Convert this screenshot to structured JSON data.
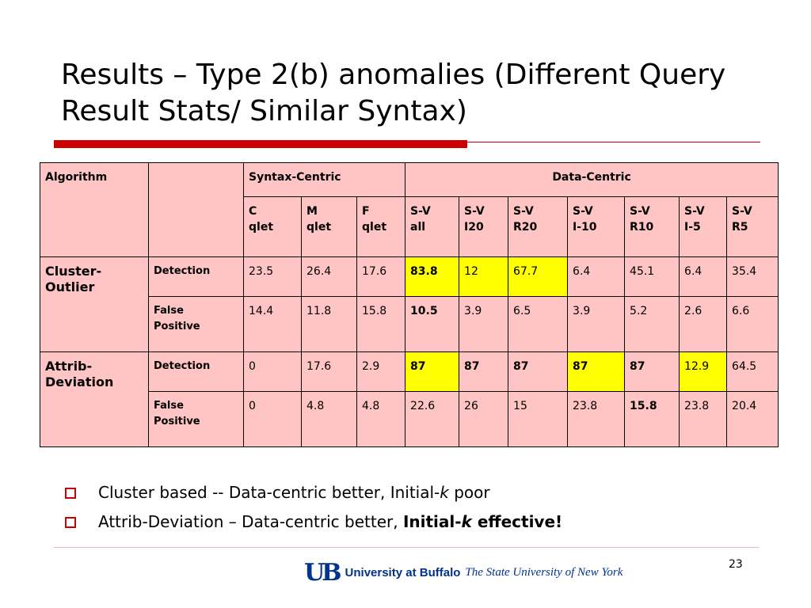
{
  "title": "Results – Type 2(b) anomalies (Different Query Result Stats/ Similar Syntax)",
  "table": {
    "header": {
      "algorithm": "Algorithm",
      "syntax_centric": "Syntax-Centric",
      "data_centric": "Data-Centric"
    },
    "subheaders": [
      [
        "C",
        "qlet"
      ],
      [
        "M",
        "qlet"
      ],
      [
        "F",
        "qlet"
      ],
      [
        "S-V",
        "all"
      ],
      [
        "S-V",
        "I20"
      ],
      [
        "S-V",
        "R20"
      ],
      [
        "S-V",
        "I-10"
      ],
      [
        "S-V",
        "R10"
      ],
      [
        "S-V",
        "I-5"
      ],
      [
        "S-V",
        "R5"
      ]
    ],
    "groups": [
      {
        "name_line1": "Cluster-",
        "name_line2": "Outlier",
        "rows": [
          {
            "metric_line1": "Detection",
            "metric_line2": "",
            "values": [
              "23.5",
              "26.4",
              "17.6",
              "83.8",
              "12",
              "67.7",
              "6.4",
              "45.1",
              "6.4",
              "35.4"
            ]
          },
          {
            "metric_line1": "False",
            "metric_line2": "Positive",
            "values": [
              "14.4",
              "11.8",
              "15.8",
              "10.5",
              "3.9",
              "6.5",
              "3.9",
              "5.2",
              "2.6",
              "6.6"
            ]
          }
        ]
      },
      {
        "name_line1": "Attrib-",
        "name_line2": "Deviation",
        "rows": [
          {
            "metric_line1": "Detection",
            "metric_line2": "",
            "values": [
              "0",
              "17.6",
              "2.9",
              "87",
              "87",
              "87",
              "87",
              "87",
              "12.9",
              "64.5"
            ]
          },
          {
            "metric_line1": "False",
            "metric_line2": "Positive",
            "values": [
              "0",
              "4.8",
              "4.8",
              "22.6",
              "26",
              "15",
              "23.8",
              "15.8",
              "23.8",
              "20.4"
            ]
          }
        ]
      }
    ]
  },
  "bullets": {
    "b1_text": "Cluster based --  Data-centric better, Initial-",
    "b1_k": "k",
    "b1_tail": " poor",
    "b2_text": "Attrib-Deviation – Data-centric better, ",
    "b2_bold": "Initial-",
    "b2_k": "k",
    "b2_bold_tail": " effective!"
  },
  "footer": {
    "logo_mark": "UB",
    "university": "University at Buffalo",
    "tagline": "The State University of New York",
    "page_number": "23"
  },
  "colors": {
    "accent_red": "#cc0000",
    "cell_pink": "#ffc4c4",
    "highlight_yellow": "#ffff00",
    "ub_blue": "#00338d"
  }
}
